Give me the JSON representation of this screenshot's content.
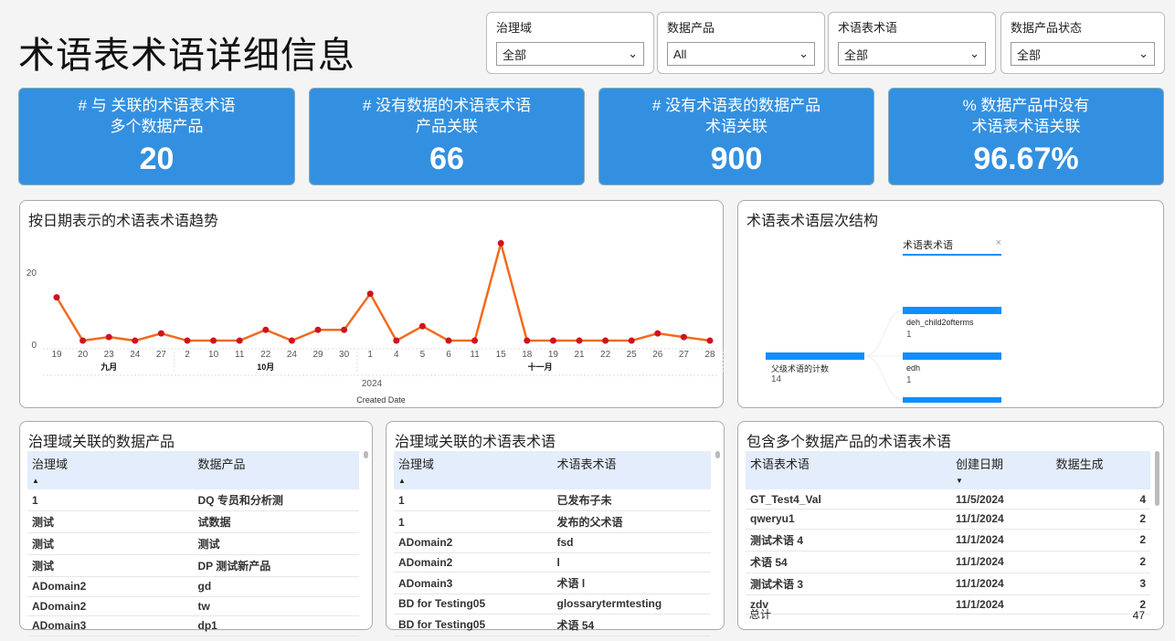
{
  "title": "术语表术语详细信息",
  "filters": [
    {
      "label": "治理域",
      "value": "全部"
    },
    {
      "label": "数据产品",
      "value": "All"
    },
    {
      "label": "术语表术语",
      "value": "全部"
    },
    {
      "label": "数据产品状态",
      "value": "全部"
    }
  ],
  "kpis": [
    {
      "line1": "# 与 关联的术语表术语",
      "line2": "多个数据产品",
      "value": "20"
    },
    {
      "line1": "# 没有数据的术语表术语",
      "line2": "产品关联",
      "value": "66"
    },
    {
      "line1": "# 没有术语表的数据产品",
      "line2": "术语关联",
      "value": "900"
    },
    {
      "line1": "% 数据产品中没有",
      "line2": "术语表术语关联",
      "value": "96.67%"
    }
  ],
  "trend": {
    "title": "按日期表示的术语表术语趋势",
    "chart_data": {
      "type": "line",
      "xlabel": "Created Date",
      "year": "2024",
      "ylim": [
        0,
        28
      ],
      "yticks": [
        "0",
        "20"
      ],
      "months": [
        {
          "label": "九月",
          "days": [
            "19",
            "20",
            "23",
            "24",
            "27"
          ]
        },
        {
          "label": "10月",
          "days": [
            "2",
            "10",
            "11",
            "22",
            "24",
            "29",
            "30"
          ]
        },
        {
          "label": "十一月",
          "days": [
            "1",
            "4",
            "5",
            "6",
            "11",
            "15",
            "18",
            "19",
            "21",
            "22",
            "25",
            "26",
            "27",
            "28"
          ]
        }
      ],
      "values": [
        13,
        1,
        2,
        1,
        3,
        1,
        1,
        1,
        4,
        1,
        4,
        4,
        14,
        1,
        5,
        1,
        1,
        28,
        1,
        1,
        1,
        1,
        1,
        3,
        2,
        1
      ],
      "line_color": "#f26a1b",
      "marker_color": "#d0121f"
    }
  },
  "hierarchy": {
    "title": "术语表术语层次结构",
    "level_header": "术语表术语",
    "root": {
      "label": "父级术语的计数",
      "value": "14"
    },
    "children": [
      {
        "label": "deh_child2ofterms",
        "value": "1"
      },
      {
        "label": "edh",
        "value": "1"
      }
    ],
    "bar_color": "#118dff"
  },
  "t1": {
    "title": "治理域关联的数据产品",
    "cols": [
      "治理域",
      "数据产品"
    ],
    "rows": [
      [
        "1",
        "DQ 专员和分析测"
      ],
      [
        "测试",
        "试数据"
      ],
      [
        "测试",
        "测试"
      ],
      [
        "测试",
        "DP 测试新产品"
      ],
      [
        "ADomain2",
        "gd"
      ],
      [
        "ADomain2",
        "tw"
      ],
      [
        "ADomain3",
        "dp1"
      ]
    ]
  },
  "t2": {
    "title": "治理域关联的术语表术语",
    "cols": [
      "治理域",
      "术语表术语"
    ],
    "rows": [
      [
        "1",
        "已发布子未"
      ],
      [
        "1",
        "发布的父术语"
      ],
      [
        "ADomain2",
        "fsd"
      ],
      [
        "ADomain2",
        "l"
      ],
      [
        "ADomain3",
        "术语 l"
      ],
      [
        "BD for Testing05",
        "glossarytermtesting"
      ],
      [
        "BD for Testing05",
        "术语 54"
      ]
    ]
  },
  "t3": {
    "title": "包含多个数据产品的术语表术语",
    "cols": [
      "术语表术语",
      "创建日期",
      "数据生成"
    ],
    "rows": [
      [
        "GT_Test4_Val",
        "11/5/2024",
        "4"
      ],
      [
        "qweryu1",
        "11/1/2024",
        "2"
      ],
      [
        "测试术语 4",
        "11/1/2024",
        "2"
      ],
      [
        "术语 54",
        "11/1/2024",
        "2"
      ],
      [
        "测试术语 3",
        "11/1/2024",
        "3"
      ],
      [
        "zdv",
        "11/1/2024",
        "2"
      ]
    ],
    "total_label": "总计",
    "total": "47"
  }
}
